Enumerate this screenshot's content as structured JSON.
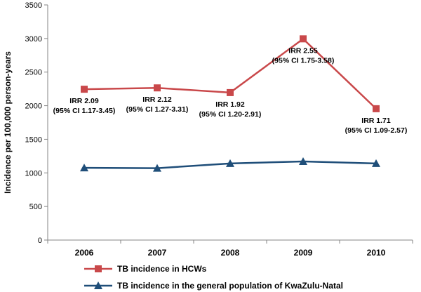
{
  "chart_data": {
    "type": "line",
    "xlabel": "",
    "ylabel": "Incidence per 100,000 person-years",
    "ylim": [
      0,
      3500
    ],
    "yticks": [
      0,
      500,
      1000,
      1500,
      2000,
      2500,
      3000,
      3500
    ],
    "categories": [
      "2006",
      "2007",
      "2008",
      "2009",
      "2010"
    ],
    "grid": false,
    "legend_position": "bottom",
    "series": [
      {
        "name": "TB incidence in HCWs",
        "color": "#c9484a",
        "marker": "square",
        "values": [
          2245,
          2265,
          2195,
          2995,
          1955
        ]
      },
      {
        "name": "TB incidence in the general population of KwaZulu-Natal",
        "color": "#1f4e79",
        "marker": "triangle",
        "values": [
          1075,
          1070,
          1140,
          1170,
          1140
        ]
      }
    ],
    "annotations": [
      {
        "category": "2006",
        "line1": "IRR 2.09",
        "line2": "(95% CI 1.17-3.45)"
      },
      {
        "category": "2007",
        "line1": "IRR 2.12",
        "line2": "(95% CI 1.27-3.31)"
      },
      {
        "category": "2008",
        "line1": "IRR 1.92",
        "line2": "(95% CI 1.20-2.91)"
      },
      {
        "category": "2009",
        "line1": "IRR 2.55",
        "line2": "(95% CI 1.75-3.58)"
      },
      {
        "category": "2010",
        "line1": "IRR 1.71",
        "line2": "(95% CI 1.09-2.57)"
      }
    ]
  }
}
